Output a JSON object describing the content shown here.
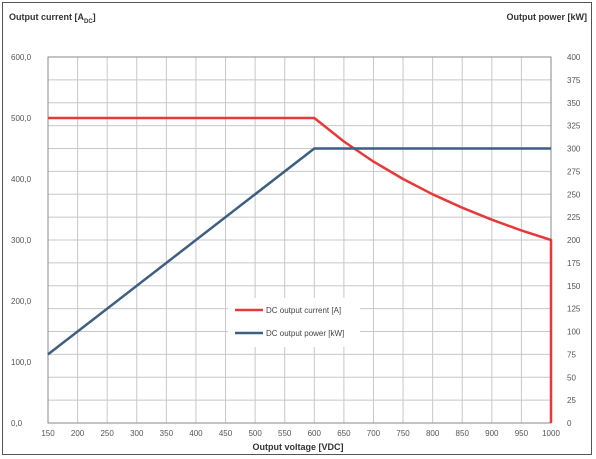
{
  "chart_data": {
    "type": "line",
    "ylabel_left": "Output current [A",
    "ylabel_left_sub": "DC",
    "ylabel_left_end": "]",
    "ylabel_right": "Output power [kW]",
    "xlabel": "Output voltage [VDC]",
    "xlim": [
      150,
      1000
    ],
    "ylim_left": [
      0,
      600
    ],
    "ylim_right": [
      0,
      400
    ],
    "xticks": [
      150,
      200,
      250,
      300,
      350,
      400,
      450,
      500,
      550,
      600,
      650,
      700,
      750,
      800,
      850,
      900,
      950,
      1000
    ],
    "yticks_left": [
      "0,0",
      "100,0",
      "200,0",
      "300,0",
      "400,0",
      "500,0",
      "600,0"
    ],
    "yticks_right": [
      "0",
      "25",
      "50",
      "75",
      "100",
      "125",
      "150",
      "175",
      "200",
      "225",
      "250",
      "275",
      "300",
      "325",
      "350",
      "375",
      "400"
    ],
    "grid": true,
    "legend_position": "center",
    "series": [
      {
        "name": "DC output current [A]",
        "axis": "left",
        "color": "#e8393a",
        "x": [
          150,
          600,
          650,
          700,
          750,
          800,
          850,
          900,
          950,
          1000,
          1000
        ],
        "y": [
          500,
          500,
          461.5,
          428.6,
          400,
          375,
          352.9,
          333.3,
          315.8,
          300,
          0
        ]
      },
      {
        "name": "DC output power [kW]",
        "axis": "right",
        "color": "#3e5f82",
        "x": [
          150,
          600,
          1000
        ],
        "y": [
          75,
          300,
          300
        ]
      }
    ]
  }
}
